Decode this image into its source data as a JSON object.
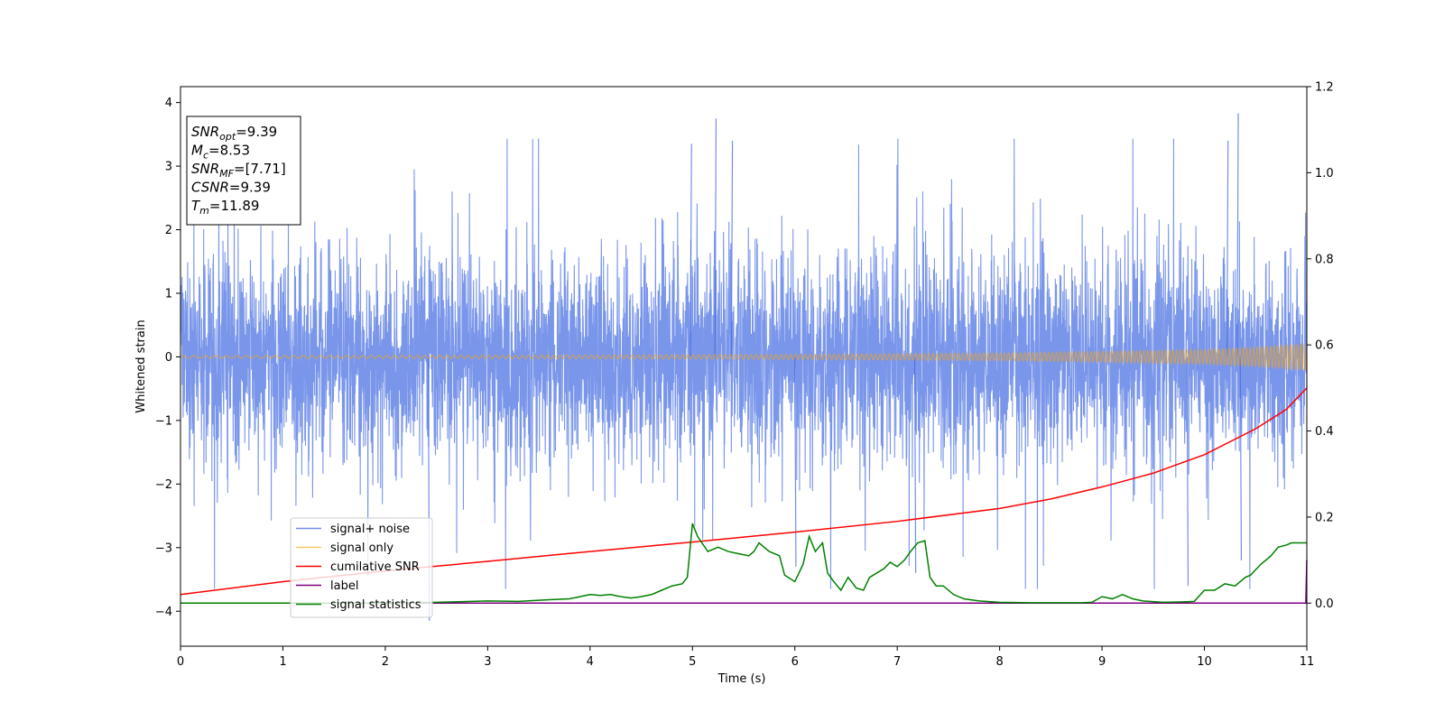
{
  "chart_data": {
    "type": "line",
    "xlabel": "Time (s)",
    "ylabel": "Whitened strain",
    "title": "",
    "xlim": [
      0,
      11
    ],
    "ylim": [
      -4.55,
      4.25
    ],
    "y2lim": [
      -0.1,
      1.2
    ],
    "grid": false,
    "legend_placement": "lower-left",
    "x_ticks": [
      0,
      1,
      2,
      3,
      4,
      5,
      6,
      7,
      8,
      9,
      10,
      11
    ],
    "y_ticks": [
      -4,
      -3,
      -2,
      -1,
      0,
      1,
      2,
      3,
      4
    ],
    "y2_ticks": [
      0.0,
      0.2,
      0.4,
      0.6,
      0.8,
      1.0,
      1.2
    ],
    "y_tick_labels": [
      "−4",
      "−3",
      "−2",
      "−1",
      "0",
      "1",
      "2",
      "3",
      "4"
    ],
    "y2_tick_labels": [
      "0.0",
      "0.2",
      "0.4",
      "0.6",
      "0.8",
      "1.0",
      "1.2"
    ],
    "info_box": [
      {
        "main": "SNR",
        "sub": "opt",
        "value": "=9.39"
      },
      {
        "main": "M",
        "sub": "c",
        "value": "=8.53"
      },
      {
        "main": "SNR",
        "sub": "MF",
        "value": "=[7.71]"
      },
      {
        "main": "CSNR",
        "sub": "",
        "value": "=9.39"
      },
      {
        "main": "T",
        "sub": "m",
        "value": "=11.89"
      }
    ],
    "series": [
      {
        "name": "signal+ noise",
        "color": "#4169e1",
        "axis": "left",
        "kind": "noise",
        "amplitude_range": [
          -4.15,
          3.83
        ],
        "peaks": [
          [
            5.22,
            3.75
          ],
          [
            10.32,
            3.83
          ],
          [
            5.38,
            3.4
          ],
          [
            4.98,
            3.35
          ],
          [
            10.22,
            3.4
          ],
          [
            2.42,
            -4.15
          ],
          [
            9.83,
            -3.6
          ],
          [
            10.35,
            -3.2
          ],
          [
            6.0,
            -3.3
          ],
          [
            7.17,
            -3.4
          ]
        ]
      },
      {
        "name": "signal only",
        "color": "#ffa500",
        "axis": "left",
        "kind": "chirp",
        "envelope": {
          "x": [
            0,
            2,
            4,
            6,
            8,
            9,
            10,
            10.5,
            11
          ],
          "amp": [
            0.02,
            0.025,
            0.03,
            0.04,
            0.06,
            0.085,
            0.12,
            0.16,
            0.22
          ]
        }
      },
      {
        "name": "cumilative SNR",
        "color": "#ff0000",
        "axis": "right",
        "x": [
          0,
          1,
          2,
          3,
          4,
          5,
          6,
          7,
          8,
          8.5,
          9,
          9.5,
          10,
          10.5,
          10.8,
          11
        ],
        "values": [
          0.02,
          0.05,
          0.075,
          0.097,
          0.12,
          0.142,
          0.165,
          0.19,
          0.22,
          0.242,
          0.27,
          0.302,
          0.345,
          0.405,
          0.45,
          0.5
        ]
      },
      {
        "name": "label",
        "color": "#800080",
        "axis": "right",
        "x": [
          0,
          10.99,
          11
        ],
        "values": [
          0.0,
          0.0,
          0.1
        ]
      },
      {
        "name": "signal statistics",
        "color": "#008000",
        "axis": "right",
        "x": [
          0,
          1,
          2,
          2.5,
          3,
          3.3,
          3.6,
          3.8,
          3.9,
          4.0,
          4.1,
          4.2,
          4.3,
          4.4,
          4.5,
          4.6,
          4.7,
          4.8,
          4.9,
          4.95,
          5.0,
          5.05,
          5.15,
          5.25,
          5.35,
          5.45,
          5.55,
          5.6,
          5.65,
          5.75,
          5.85,
          5.9,
          6.0,
          6.08,
          6.14,
          6.2,
          6.27,
          6.32,
          6.38,
          6.45,
          6.52,
          6.6,
          6.67,
          6.73,
          6.8,
          6.87,
          6.93,
          7.0,
          7.07,
          7.13,
          7.2,
          7.27,
          7.32,
          7.38,
          7.45,
          7.55,
          7.65,
          7.8,
          8.0,
          8.3,
          8.6,
          8.8,
          8.9,
          9.0,
          9.1,
          9.2,
          9.3,
          9.4,
          9.6,
          9.8,
          9.9,
          10.0,
          10.1,
          10.2,
          10.3,
          10.4,
          10.45,
          10.55,
          10.65,
          10.72,
          10.8,
          10.85,
          10.93,
          11.0
        ],
        "values": [
          0.0,
          0.0,
          0.0,
          0.002,
          0.005,
          0.004,
          0.008,
          0.01,
          0.015,
          0.02,
          0.018,
          0.02,
          0.015,
          0.012,
          0.015,
          0.02,
          0.03,
          0.04,
          0.045,
          0.06,
          0.185,
          0.155,
          0.12,
          0.13,
          0.12,
          0.115,
          0.11,
          0.12,
          0.14,
          0.12,
          0.11,
          0.065,
          0.05,
          0.09,
          0.155,
          0.12,
          0.14,
          0.07,
          0.05,
          0.03,
          0.06,
          0.035,
          0.03,
          0.06,
          0.07,
          0.08,
          0.095,
          0.085,
          0.1,
          0.12,
          0.14,
          0.145,
          0.06,
          0.04,
          0.04,
          0.02,
          0.01,
          0.005,
          0.002,
          0.001,
          0.001,
          0.001,
          0.002,
          0.015,
          0.01,
          0.02,
          0.01,
          0.005,
          0.002,
          0.003,
          0.004,
          0.03,
          0.03,
          0.045,
          0.04,
          0.06,
          0.065,
          0.09,
          0.11,
          0.13,
          0.135,
          0.14,
          0.14,
          0.14
        ]
      }
    ]
  }
}
